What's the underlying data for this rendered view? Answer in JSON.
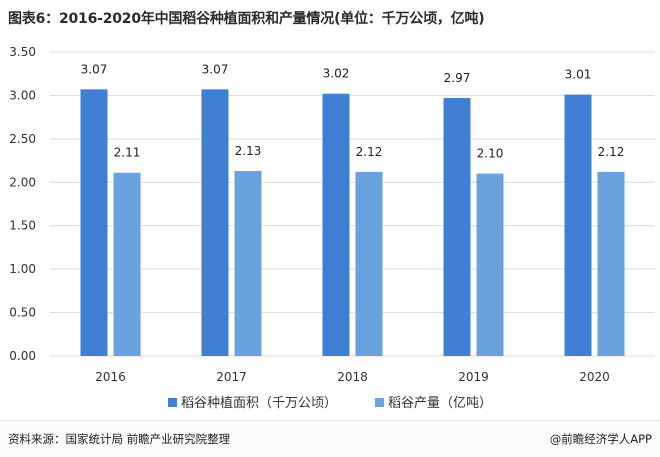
{
  "title": "图表6：2016-2020年中国稻谷种植面积和产量情况(单位：千万公顷，亿吨)",
  "source": "资料来源：国家统计局 前瞻产业研究院整理",
  "credit": "@前瞻经济学人APP",
  "colors": {
    "series1": "#3f7fd4",
    "series2": "#6aa1df",
    "grid": "#d9d9d9"
  },
  "chart_data": {
    "type": "bar",
    "categories": [
      "2016",
      "2017",
      "2018",
      "2019",
      "2020"
    ],
    "series": [
      {
        "name": "稻谷种植面积（千万公顷）",
        "values": [
          3.07,
          3.07,
          3.02,
          2.97,
          3.01
        ]
      },
      {
        "name": "稻谷产量（亿吨）",
        "values": [
          2.11,
          2.13,
          2.12,
          2.1,
          2.12
        ]
      }
    ],
    "ylim": [
      0,
      3.5
    ],
    "yticks": [
      "0.00",
      "0.50",
      "1.00",
      "1.50",
      "2.00",
      "2.50",
      "3.00",
      "3.50"
    ],
    "grid": true,
    "legend_position": "bottom"
  }
}
